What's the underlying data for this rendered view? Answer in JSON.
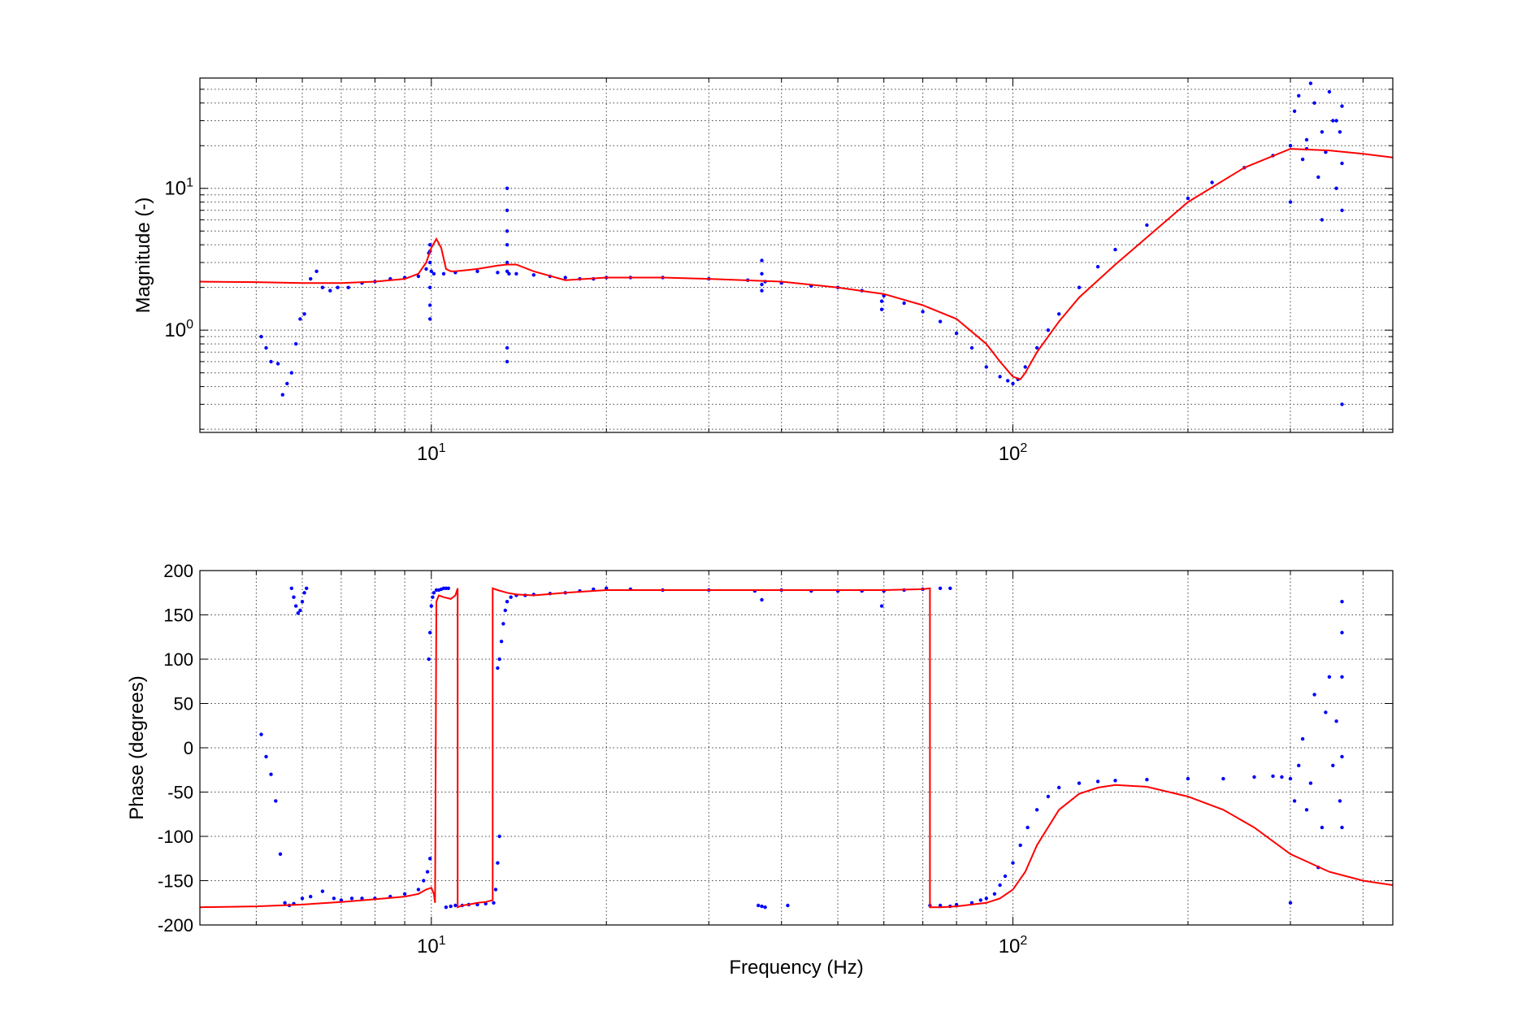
{
  "chart_data": [
    {
      "type": "scatter",
      "xscale": "log",
      "yscale": "log",
      "xlim": [
        4,
        450
      ],
      "ylim": [
        0.19,
        60
      ],
      "grid": true,
      "xlabel": "",
      "ylabel": "Magnitude (-)",
      "xticks": [
        {
          "value": 10,
          "base": "10",
          "exp": "1"
        },
        {
          "value": 100,
          "base": "10",
          "exp": "2"
        }
      ],
      "yticks": [
        {
          "value": 1,
          "base": "10",
          "exp": "0"
        },
        {
          "value": 10,
          "base": "10",
          "exp": "1"
        }
      ],
      "series": [
        {
          "style": "points",
          "color": "#0000ff",
          "x": [
            5.1,
            5.2,
            5.3,
            5.45,
            5.55,
            5.65,
            5.75,
            5.85,
            5.95,
            6.05,
            6.2,
            6.35,
            6.5,
            6.7,
            6.9,
            7.2,
            7.6,
            8.0,
            8.5,
            9.0,
            9.5,
            9.8,
            9.9,
            10.0,
            10.1,
            10.5,
            11.0,
            12.0,
            13.0,
            13.6,
            14.0,
            15.0,
            16.0,
            17.0,
            18.0,
            19.0,
            20.0,
            22.0,
            25.0,
            30.0,
            35.0,
            37.5,
            40.0,
            45.0,
            50.0,
            55.0,
            60.0,
            65.0,
            70.0,
            75.0,
            80.0,
            85.0,
            90.0,
            95.0,
            98.0,
            100.0,
            102.0,
            105.0,
            110.0,
            115.0,
            120.0,
            130.0,
            140.0,
            150.0,
            170.0,
            200.0,
            220.0,
            250.0,
            280.0,
            300.0,
            320.0,
            340.0,
            360.0
          ],
          "y": [
            0.9,
            0.75,
            0.6,
            0.58,
            0.35,
            0.42,
            0.5,
            0.8,
            1.2,
            1.3,
            2.3,
            2.6,
            2.0,
            1.9,
            2.0,
            2.0,
            2.15,
            2.2,
            2.3,
            2.35,
            2.4,
            2.7,
            3.5,
            2.6,
            2.5,
            2.5,
            2.55,
            2.6,
            2.55,
            2.5,
            2.5,
            2.45,
            2.4,
            2.35,
            2.3,
            2.3,
            2.35,
            2.35,
            2.35,
            2.3,
            2.25,
            2.2,
            2.15,
            2.05,
            2.0,
            1.9,
            1.75,
            1.55,
            1.35,
            1.15,
            0.95,
            0.75,
            0.55,
            0.47,
            0.44,
            0.42,
            0.45,
            0.55,
            0.75,
            1.0,
            1.3,
            2.0,
            2.8,
            3.7,
            5.5,
            8.5,
            11.0,
            14.0,
            17.0,
            20.0,
            19.0,
            25.0,
            30.0
          ]
        },
        {
          "style": "points",
          "color": "#0000ff",
          "x": [
            9.95,
            9.95,
            9.95,
            9.95,
            9.95,
            9.95,
            13.5,
            13.5,
            13.5,
            13.5,
            13.5,
            13.5,
            13.5,
            13.5,
            37.0,
            37.0,
            37.0,
            37.0,
            59.5,
            59.5,
            300.0,
            305.0,
            310.0,
            315.0,
            320.0,
            325.0,
            330.0,
            335.0,
            340.0,
            345.0,
            350.0,
            355.0,
            360.0,
            365.0,
            368.0,
            368.0,
            368.0,
            368.0
          ],
          "y": [
            1.2,
            1.5,
            2.0,
            3.0,
            3.6,
            4.0,
            0.6,
            0.75,
            2.6,
            3.0,
            4.0,
            5.0,
            7.0,
            10.0,
            1.9,
            2.1,
            2.5,
            3.1,
            1.4,
            1.6,
            8.0,
            35.0,
            45.0,
            16.0,
            22.0,
            55.0,
            40.0,
            12.0,
            6.0,
            18.0,
            48.0,
            30.0,
            10.0,
            25.0,
            7.0,
            15.0,
            38.0,
            0.3
          ]
        },
        {
          "style": "line",
          "color": "#ff0000",
          "x": [
            4.0,
            5.0,
            6.0,
            7.0,
            8.0,
            9.0,
            9.5,
            9.8,
            10.0,
            10.2,
            10.4,
            10.6,
            10.8,
            11.0,
            11.5,
            12.0,
            13.0,
            13.5,
            14.0,
            15.0,
            17.0,
            20.0,
            25.0,
            30.0,
            40.0,
            50.0,
            60.0,
            70.0,
            80.0,
            90.0,
            95.0,
            100.0,
            103.0,
            105.0,
            110.0,
            120.0,
            130.0,
            150.0,
            200.0,
            250.0,
            300.0,
            350.0,
            400.0,
            450.0
          ],
          "y": [
            2.2,
            2.18,
            2.15,
            2.15,
            2.2,
            2.3,
            2.5,
            3.0,
            3.8,
            4.4,
            3.8,
            2.7,
            2.6,
            2.6,
            2.65,
            2.7,
            2.85,
            2.9,
            2.9,
            2.6,
            2.25,
            2.35,
            2.35,
            2.3,
            2.2,
            2.0,
            1.8,
            1.5,
            1.2,
            0.8,
            0.6,
            0.47,
            0.45,
            0.5,
            0.7,
            1.15,
            1.7,
            2.9,
            8.0,
            14.0,
            19.0,
            18.5,
            17.5,
            16.5
          ]
        }
      ]
    },
    {
      "type": "scatter",
      "xscale": "log",
      "yscale": "linear",
      "xlim": [
        4,
        450
      ],
      "ylim": [
        -200,
        200
      ],
      "grid": true,
      "xlabel": "Frequency (Hz)",
      "ylabel": "Phase (degrees)",
      "xticks": [
        {
          "value": 10,
          "base": "10",
          "exp": "1"
        },
        {
          "value": 100,
          "base": "10",
          "exp": "2"
        }
      ],
      "yticks": [
        {
          "value": 200,
          "label": "200"
        },
        {
          "value": 150,
          "label": "150"
        },
        {
          "value": 100,
          "label": "100"
        },
        {
          "value": 50,
          "label": "50"
        },
        {
          "value": 0,
          "label": "0"
        },
        {
          "value": -50,
          "label": "-50"
        },
        {
          "value": -100,
          "label": "-100"
        },
        {
          "value": -150,
          "label": "-150"
        },
        {
          "value": -200,
          "label": "-200"
        }
      ],
      "series": [
        {
          "style": "points",
          "color": "#0000ff",
          "x": [
            5.1,
            5.2,
            5.3,
            5.4,
            5.5,
            5.6,
            5.7,
            5.8,
            6.0,
            6.2,
            6.5,
            6.8,
            7.0,
            7.3,
            7.6,
            8.0,
            8.5,
            9.0,
            9.5,
            9.7,
            9.85,
            9.95
          ],
          "y": [
            15,
            -10,
            -30,
            -60,
            -120,
            -175,
            -178,
            -176,
            -170,
            -168,
            -162,
            -170,
            -172,
            -170,
            -170,
            -170,
            -168,
            -165,
            -160,
            -150,
            -140,
            -125
          ]
        },
        {
          "style": "points",
          "color": "#0000ff",
          "x": [
            5.75,
            5.8,
            5.85,
            5.9,
            5.95,
            6.0,
            6.05,
            6.1
          ],
          "y": [
            180,
            170,
            160,
            152,
            155,
            165,
            175,
            180
          ]
        },
        {
          "style": "points",
          "color": "#0000ff",
          "x": [
            9.9,
            9.95,
            10.0,
            10.05,
            10.1,
            10.2,
            10.3,
            10.4,
            10.5,
            10.6,
            10.7
          ],
          "y": [
            100,
            130,
            160,
            170,
            175,
            178,
            178,
            179,
            180,
            180,
            180
          ]
        },
        {
          "style": "points",
          "color": "#0000ff",
          "x": [
            10.6,
            10.8,
            11.0,
            11.3,
            11.6,
            12.0,
            12.4,
            12.8
          ],
          "y": [
            -180,
            -179,
            -178,
            -178,
            -177,
            -177,
            -176,
            -175
          ]
        },
        {
          "style": "points",
          "color": "#0000ff",
          "x": [
            12.9,
            13.0,
            13.1
          ],
          "y": [
            -160,
            -130,
            -100
          ]
        },
        {
          "style": "points",
          "color": "#0000ff",
          "x": [
            13.0,
            13.1,
            13.2,
            13.3,
            13.4,
            13.5,
            13.7,
            14.0,
            14.5,
            15.0,
            16.0,
            17.0,
            18.0,
            19.0,
            20.0,
            22.0,
            25.0,
            30.0,
            36.0,
            37.0,
            40.0,
            45.0,
            50.0,
            55.0,
            59.5,
            60.0,
            65.0,
            70.0,
            75.0,
            78.0
          ],
          "y": [
            90,
            100,
            120,
            140,
            155,
            165,
            170,
            172,
            172,
            173,
            174,
            175,
            177,
            179,
            180,
            179,
            178,
            178,
            177,
            167,
            178,
            177,
            177,
            177,
            160,
            177,
            178,
            179,
            180,
            180
          ]
        },
        {
          "style": "points",
          "color": "#0000ff",
          "x": [
            36.5,
            37.0,
            37.5,
            41.0
          ],
          "y": [
            -178,
            -179,
            -180,
            -178
          ]
        },
        {
          "style": "points",
          "color": "#0000ff",
          "x": [
            72.0,
            75.0,
            78.0,
            80.0,
            85.0,
            88.0,
            90.0,
            93.0,
            95.0,
            97.0,
            100.0,
            103.0,
            106.0,
            110.0,
            115.0,
            120.0,
            130.0,
            140.0,
            150.0,
            170.0,
            200.0,
            230.0,
            260.0,
            280.0,
            290.0,
            300.0
          ],
          "y": [
            -178,
            -178,
            -179,
            -177,
            -175,
            -172,
            -170,
            -165,
            -155,
            -145,
            -130,
            -110,
            -90,
            -70,
            -55,
            -45,
            -40,
            -38,
            -37,
            -36,
            -35,
            -35,
            -33,
            -32,
            -33,
            -35
          ]
        },
        {
          "style": "points",
          "color": "#0000ff",
          "x": [
            300.0,
            305.0,
            310.0,
            315.0,
            320.0,
            325.0,
            330.0,
            335.0,
            340.0,
            345.0,
            350.0,
            355.0,
            360.0,
            365.0,
            368.0,
            368.0,
            368.0,
            368.0,
            368.0
          ],
          "y": [
            -175,
            -60,
            -20,
            10,
            -70,
            -40,
            60,
            -135,
            -90,
            40,
            80,
            -20,
            30,
            -60,
            165,
            130,
            80,
            -10,
            -90
          ]
        },
        {
          "style": "line",
          "color": "#ff0000",
          "x": [
            4.0,
            5.0,
            6.0,
            7.0,
            8.0,
            9.0,
            9.5,
            9.8,
            10.0,
            10.1,
            10.15,
            10.2,
            10.3,
            10.5,
            10.8,
            11.0,
            11.1,
            11.1,
            11.3,
            11.6,
            12.0,
            12.4,
            12.75,
            12.75,
            13.0,
            13.5,
            14.0,
            15.0,
            17.0,
            20.0,
            25.0,
            30.0,
            40.0,
            50.0,
            60.0,
            70.0,
            72.0,
            72.0,
            75.0,
            80.0,
            85.0,
            90.0,
            95.0,
            100.0,
            105.0,
            110.0,
            120.0,
            130.0,
            140.0,
            150.0,
            170.0,
            200.0,
            230.0,
            260.0,
            300.0,
            350.0,
            400.0,
            450.0
          ],
          "y": [
            -180,
            -179,
            -177,
            -174,
            -171,
            -168,
            -165,
            -160,
            -158,
            -165,
            -175,
            165,
            172,
            170,
            168,
            172,
            180,
            -180,
            -178,
            -177,
            -175,
            -174,
            -172,
            180,
            178,
            175,
            173,
            172,
            175,
            178,
            178,
            178,
            178,
            178,
            178,
            179,
            180,
            -180,
            -180,
            -179,
            -177,
            -175,
            -170,
            -160,
            -140,
            -110,
            -70,
            -52,
            -45,
            -42,
            -44,
            -55,
            -70,
            -90,
            -120,
            -140,
            -150,
            -155
          ]
        }
      ]
    }
  ]
}
